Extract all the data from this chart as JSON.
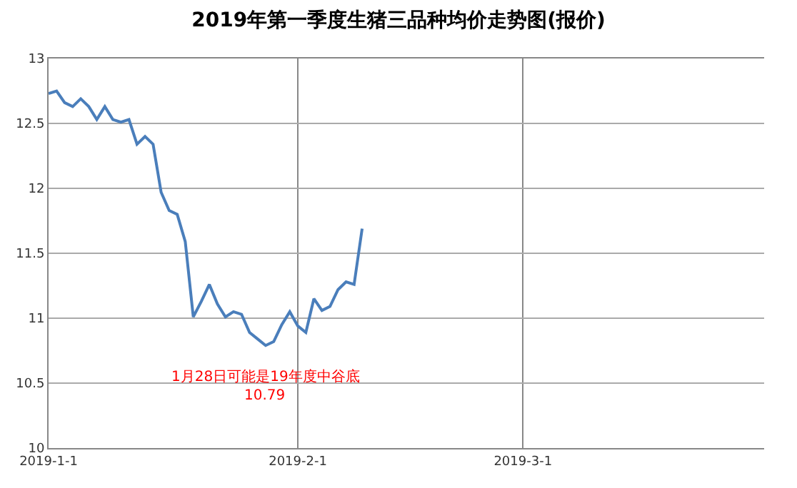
{
  "chart_data": {
    "type": "line",
    "title": "2019年第一季度生猪三品种均价走势图(报价)",
    "x": [
      "2019-01-01",
      "2019-01-02",
      "2019-01-03",
      "2019-01-04",
      "2019-01-05",
      "2019-01-06",
      "2019-01-07",
      "2019-01-08",
      "2019-01-09",
      "2019-01-10",
      "2019-01-11",
      "2019-01-12",
      "2019-01-13",
      "2019-01-14",
      "2019-01-15",
      "2019-01-16",
      "2019-01-17",
      "2019-01-18",
      "2019-01-19",
      "2019-01-20",
      "2019-01-21",
      "2019-01-22",
      "2019-01-23",
      "2019-01-24",
      "2019-01-25",
      "2019-01-26",
      "2019-01-27",
      "2019-01-28",
      "2019-01-29",
      "2019-01-30",
      "2019-01-31",
      "2019-02-01",
      "2019-02-02",
      "2019-02-03",
      "2019-02-04",
      "2019-02-05",
      "2019-02-06",
      "2019-02-07",
      "2019-02-08",
      "2019-02-09"
    ],
    "series": [
      {
        "color": "#4a7ebb",
        "values": [
          12.73,
          12.75,
          12.66,
          12.63,
          12.69,
          12.63,
          12.53,
          12.63,
          12.53,
          12.51,
          12.53,
          12.34,
          12.4,
          12.34,
          11.97,
          11.83,
          11.8,
          11.59,
          11.01,
          11.13,
          11.26,
          11.11,
          11.01,
          11.05,
          11.03,
          10.89,
          10.84,
          10.79,
          10.82,
          10.95,
          11.05,
          10.94,
          10.89,
          11.15,
          11.06,
          11.09,
          11.22,
          11.28,
          11.26,
          11.69
        ]
      }
    ],
    "xlim": [
      "2019-01-01",
      "2019-03-31"
    ],
    "xticks": [
      {
        "value": "2019-01-01",
        "label": "2019-1-1"
      },
      {
        "value": "2019-02-01",
        "label": "2019-2-1"
      },
      {
        "value": "2019-03-01",
        "label": "2019-3-1"
      }
    ],
    "ylim": [
      10,
      13
    ],
    "yticks": [
      10,
      10.5,
      11,
      11.5,
      12,
      12.5,
      13
    ],
    "grid": true,
    "marker": "none",
    "line_style": "solid",
    "annotations": [
      {
        "text": "1月28日可能是19年度中谷底",
        "x": "2019-01-28",
        "y": 10.79
      },
      {
        "text": "10.79",
        "x": "2019-01-28",
        "y": 10.79
      }
    ]
  }
}
